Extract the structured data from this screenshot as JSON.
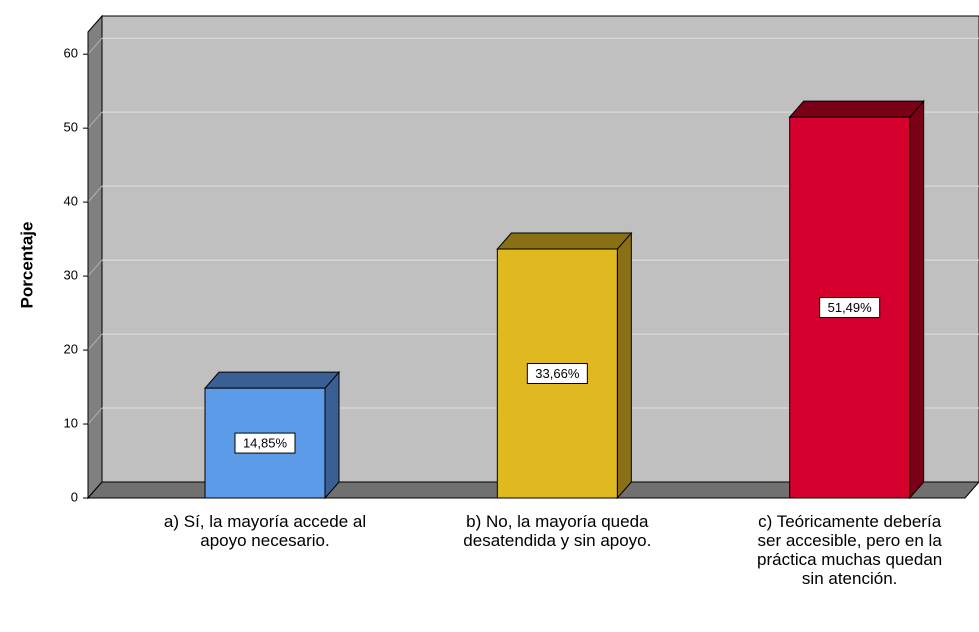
{
  "chart_data": {
    "type": "bar3d",
    "y_label": "Porcentaje",
    "categories": [
      "a) Sí, la mayoría accede al apoyo necesario.",
      "b) No, la mayoría queda desatendida y sin apoyo.",
      "c) Teóricamente debería ser accesible, pero en la práctica muchas quedan sin atención."
    ],
    "values": [
      14.85,
      33.66,
      51.49
    ],
    "value_labels": [
      "14,85%",
      "33,66%",
      "51,49%"
    ],
    "colors": [
      "#5b9be8",
      "#e0b820",
      "#d6002e"
    ],
    "top_colors": [
      "#3a5f94",
      "#8a7014",
      "#7a0018"
    ],
    "ylim": [
      0,
      63
    ],
    "yticks": [
      0,
      10,
      20,
      30,
      40,
      50,
      60
    ],
    "grid": true
  }
}
